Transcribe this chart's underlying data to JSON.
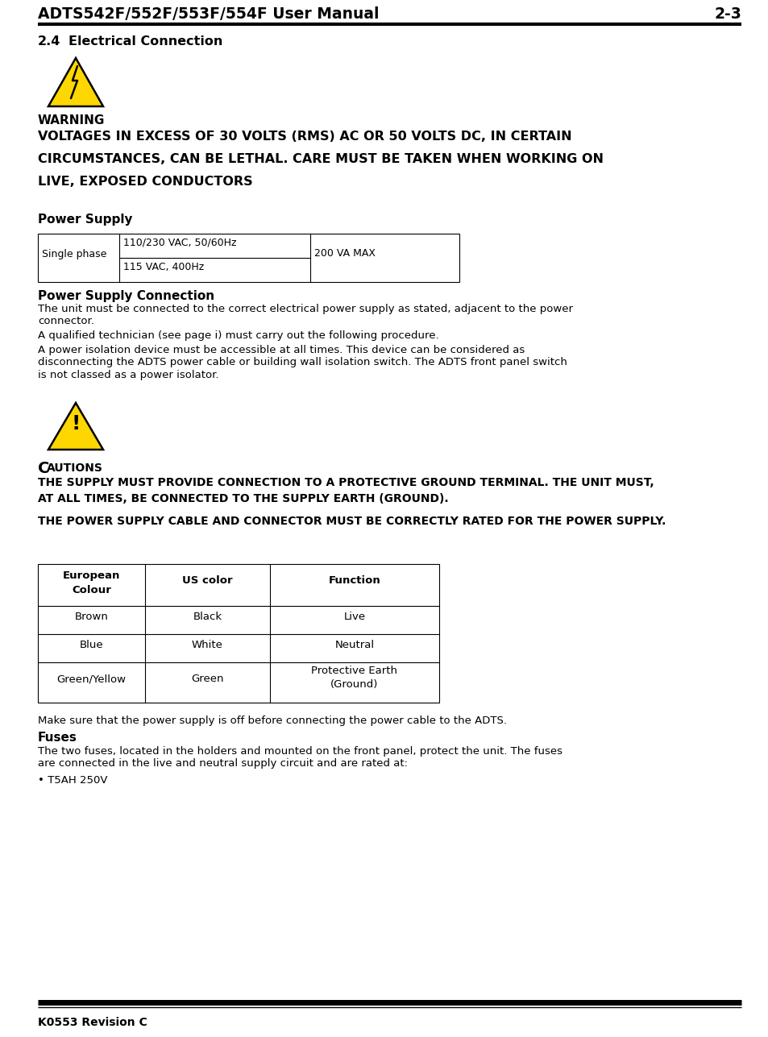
{
  "header_title": "ADTS542F/552F/553F/554F User Manual",
  "header_page": "2-3",
  "footer_text": "K0553 Revision C",
  "section_number": "2.4",
  "section_title": "Electrical Connection",
  "warning_title": "WARNING",
  "warning_line1": "VOLTAGES IN EXCESS OF 30 VOLTS (RMS) AC OR 50 VOLTS DC, IN CERTAIN",
  "warning_line2": "CIRCUMSTANCES, CAN BE LETHAL. CARE MUST BE TAKEN WHEN WORKING ON",
  "warning_line3": "LIVE, EXPOSED CONDUCTORS",
  "power_supply_title": "Power Supply",
  "ps_connection_title": "Power Supply Connection",
  "ps_body1_line1": "The unit must be connected to the correct electrical power supply as stated, adjacent to the power",
  "ps_body1_line2": "connector.",
  "ps_body2": "A qualified technician (see page i) must carry out the following procedure.",
  "ps_body3_line1": "A power isolation device must be accessible at all times. This device can be considered as",
  "ps_body3_line2": "disconnecting the ADTS power cable or building wall isolation switch. The ADTS front panel switch",
  "ps_body3_line3": "is not classed as a power isolator.",
  "cautions_title_C": "C",
  "cautions_title_rest": "AUTIONS",
  "cautions_b1_line1": "THE SUPPLY MUST PROVIDE CONNECTION TO A PROTECTIVE GROUND TERMINAL. THE UNIT MUST,",
  "cautions_b1_line2": "AT ALL TIMES, BE CONNECTED TO THE SUPPLY EARTH (GROUND).",
  "cautions_b2": "THE POWER SUPPLY CABLE AND CONNECTOR MUST BE CORRECTLY RATED FOR THE POWER SUPPLY.",
  "make_sure_text": "Make sure that the power supply is off before connecting the power cable to the ADTS.",
  "fuses_title": "Fuses",
  "fuses_line1": "The two fuses, located in the holders and mounted on the front panel, protect the unit. The fuses",
  "fuses_line2": "are connected in the live and neutral supply circuit and are rated at:",
  "fuses_bullet": "• T5AH 250V",
  "t1_col1": "Single phase",
  "t1_col2a": "110/230 VAC, 50/60Hz",
  "t1_col2b": "115 VAC, 400Hz",
  "t1_col3": "200 VA MAX",
  "t2_h1": "European\nColour",
  "t2_h2": "US color",
  "t2_h3": "Function",
  "t2_r1": [
    "Brown",
    "Black",
    "Live"
  ],
  "t2_r2": [
    "Blue",
    "White",
    "Neutral"
  ],
  "t2_r3": [
    "Green/Yellow",
    "Green",
    "Protective Earth\n(Ground)"
  ]
}
